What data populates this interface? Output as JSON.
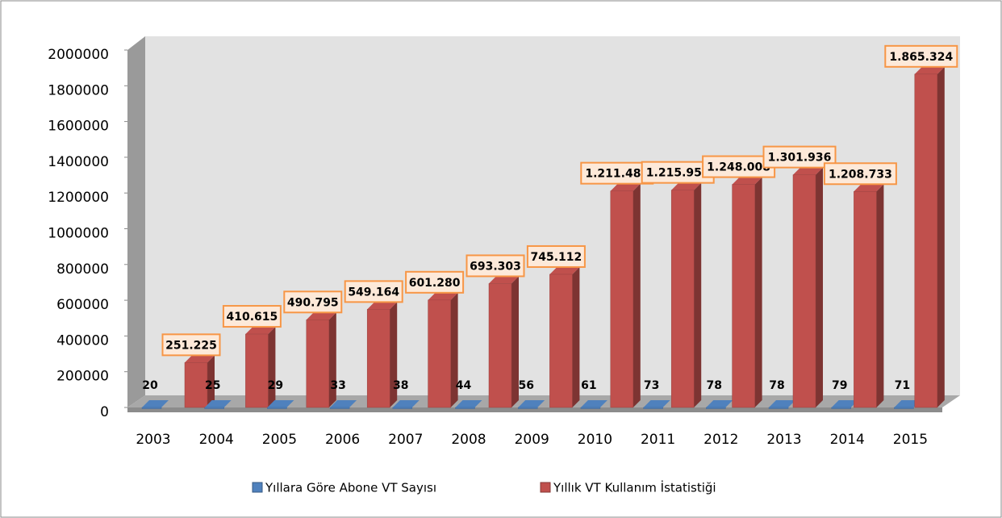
{
  "chart_data": {
    "type": "bar3d",
    "categories": [
      "2003",
      "2004",
      "2005",
      "2006",
      "2007",
      "2008",
      "2009",
      "2010",
      "2011",
      "2012",
      "2013",
      "2014",
      "2015"
    ],
    "series": [
      {
        "name": "Yıllara Göre Abone VT Sayısı",
        "color": "#4f81bd",
        "values": [
          20,
          25,
          29,
          33,
          38,
          44,
          56,
          61,
          73,
          78,
          78,
          79,
          71
        ]
      },
      {
        "name": "Yıllık VT Kullanım İstatistiği",
        "color": "#c0504d",
        "values": [
          251225,
          410615,
          490795,
          549164,
          601280,
          693303,
          745112,
          1211488,
          1215955,
          1248008,
          1301936,
          1208733,
          1865324
        ],
        "value_labels": [
          "251.225",
          "410.615",
          "490.795",
          "549.164",
          "601.280",
          "693.303",
          "745.112",
          "1.211.488",
          "1.215.955",
          "1.248.008",
          "1.301.936",
          "1.208.733",
          "1.865.324"
        ]
      }
    ],
    "ylim": [
      0,
      2000000
    ],
    "yticks": [
      0,
      200000,
      400000,
      600000,
      800000,
      1000000,
      1200000,
      1400000,
      1600000,
      1800000,
      2000000
    ],
    "legend": "bottom"
  }
}
